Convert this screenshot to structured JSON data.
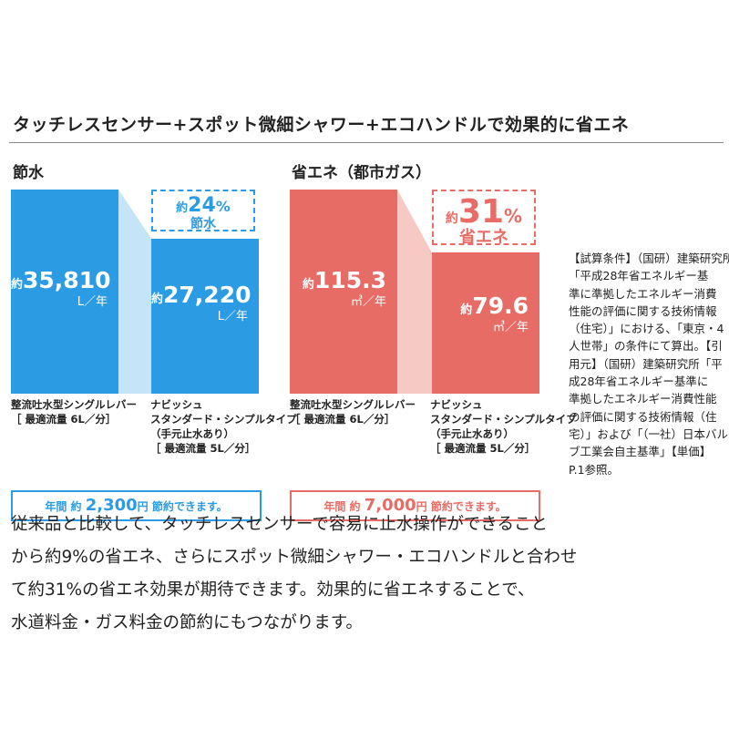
{
  "headline": "タッチレスセンサー+スポット微細シャワー+エコハンドルで効果的に省エネ",
  "colors": {
    "water_dark": "#2b9be3",
    "water_light": "#c5e4f7",
    "gas_dark": "#e86c66",
    "gas_light": "#f6c9c5"
  },
  "chart_data": [
    {
      "type": "bar",
      "title": "節水",
      "categories": [
        "整流吐水型シングルレバー［最適流量6L/分］",
        "ナビッシュ スタンダード・シンプルタイプ（手元止水あり）［最適流量5L/分］"
      ],
      "values": [
        35810,
        27220
      ],
      "value_labels": [
        "35,810",
        "27,220"
      ],
      "value_prefix": "約",
      "unit": "L／年",
      "reduction_percent": 24,
      "reduction_prefix": "約",
      "reduction_label": "節水",
      "savings": {
        "prefix": "年間 約",
        "amount": "2,300",
        "suffix": "円 節約できます。"
      }
    },
    {
      "type": "bar",
      "title": "省エネ（都市ガス）",
      "categories": [
        "整流吐水型シングルレバー［最適流量6L/分］",
        "ナビッシュ スタンダード・シンプルタイプ（手元止水あり）［最適流量5L/分］"
      ],
      "values": [
        115.3,
        79.6
      ],
      "value_labels": [
        "115.3",
        "79.6"
      ],
      "value_prefix": "約",
      "unit": "㎥／年",
      "reduction_percent": 31,
      "reduction_prefix": "約",
      "reduction_label": "省エネ",
      "savings": {
        "prefix": "年間 約",
        "amount": "7,000",
        "suffix": "円 節約できます。"
      }
    }
  ],
  "bar_labels": {
    "conventional": [
      "整流吐水型シングルレバー",
      "［ 最適流量 6L／分］"
    ],
    "product": [
      "ナビッシュ",
      "スタンダード・シンプルタイプ",
      "（手元止水あり）",
      "［ 最適流量 5L／分］"
    ]
  },
  "description": [
    "従来品と比較して、タッチレスセンサーで容易に止水操作ができること",
    "から約9%の省エネ、さらにスポット微細シャワー・エコハンドルと合わせ",
    "て約31%の省エネ効果が期待できます。効果的に省エネすることで、",
    "水道料金・ガス料金の節約にもつながります。"
  ],
  "note": [
    "【試算条件】（国研）建築研究所",
    "「平成28年省エネルギー基",
    "準に準拠したエネルギー消費",
    "性能の評価に関する技術情報",
    "（住宅）」における、「東京・4",
    "人世帯」の条件にて算出。【引",
    "用元】（国研）建築研究所「平",
    "成28年省エネルギー基準に",
    "準拠したエネルギー消費性能",
    "の評価に関する技術情報（住",
    "宅）」および「（一社）日本バル",
    "ブ工業会自主基準」【単価】",
    "P.1参照。"
  ]
}
